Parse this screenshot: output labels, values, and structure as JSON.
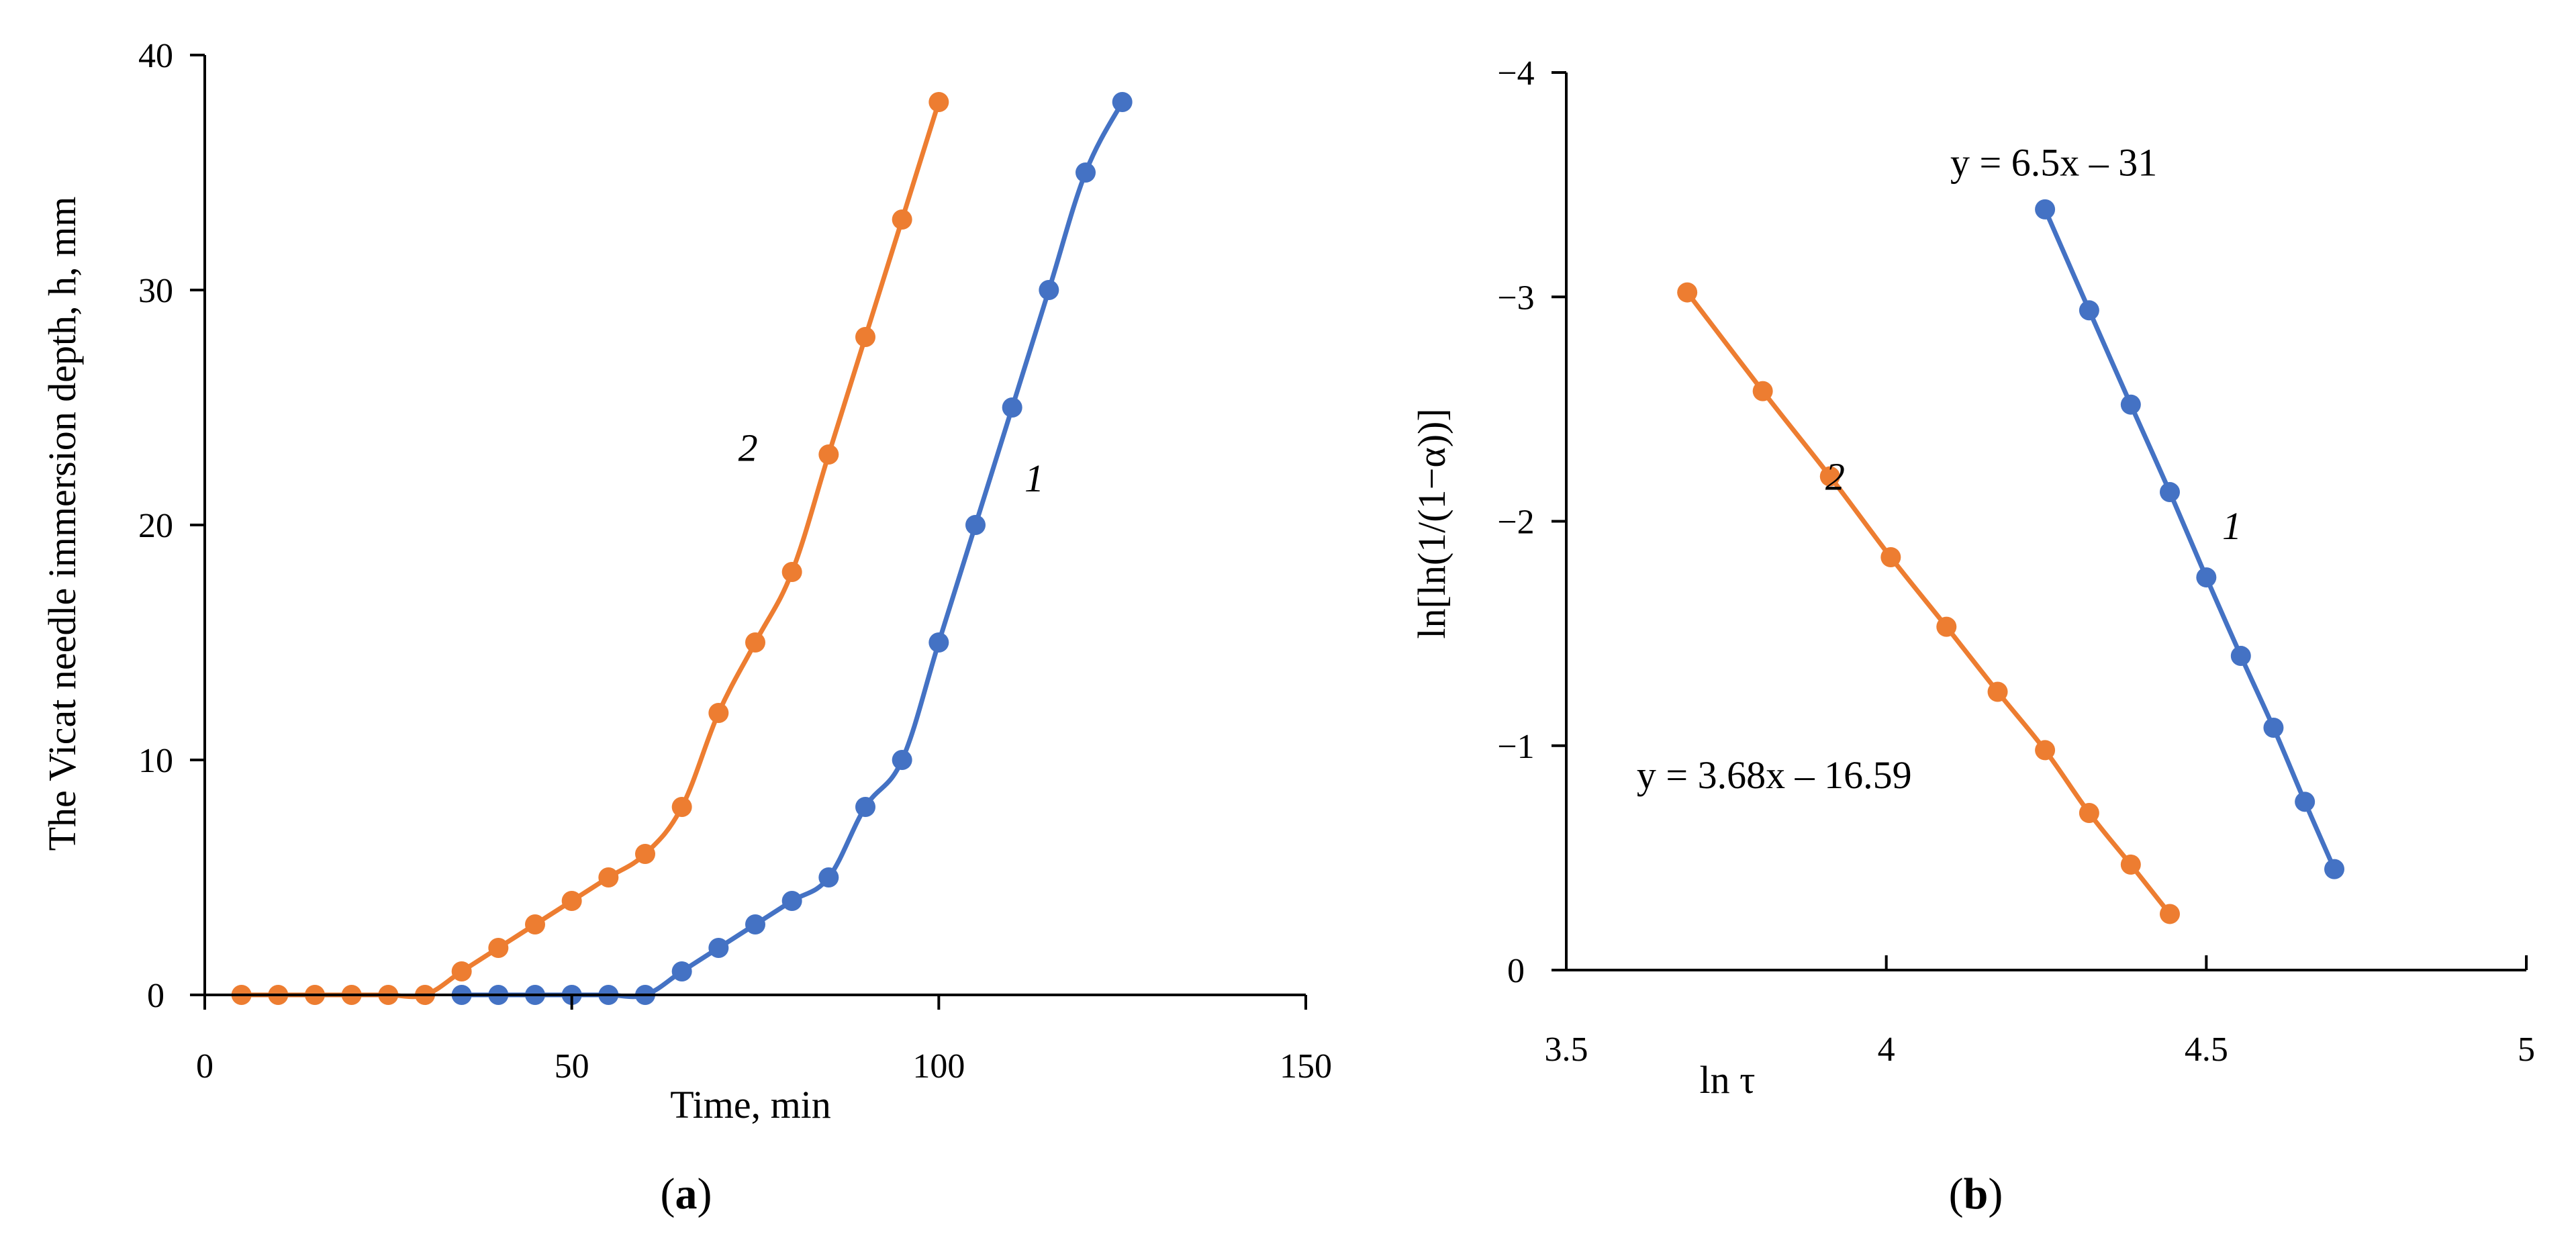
{
  "chart_data": [
    {
      "id": "a",
      "type": "line",
      "panel_label": "(a)",
      "panel_letter": "a",
      "xlabel": "Time, min",
      "ylabel": "The Vicat needle immersion depth, h, mm",
      "xlim": [
        0,
        150
      ],
      "ylim": [
        0,
        40
      ],
      "xticks": [
        0,
        50,
        100,
        150
      ],
      "yticks": [
        0,
        10,
        20,
        30,
        40
      ],
      "grid": false,
      "legend": "none",
      "series": [
        {
          "name": "1",
          "color": "#4472C4",
          "label_at": [
            113,
            22
          ],
          "x": [
            35,
            40,
            45,
            50,
            55,
            60,
            65,
            70,
            75,
            80,
            85,
            90,
            95,
            100,
            105,
            110,
            115,
            120,
            125
          ],
          "y": [
            0,
            0,
            0,
            0,
            0,
            0,
            1,
            2,
            3,
            4,
            5,
            8,
            10,
            15,
            20,
            25,
            30,
            35,
            38
          ]
        },
        {
          "name": "2",
          "color": "#ED7D31",
          "label_at": [
            74,
            23.3
          ],
          "x": [
            5,
            10,
            15,
            20,
            25,
            30,
            35,
            40,
            45,
            50,
            55,
            60,
            65,
            70,
            75,
            80,
            85,
            90,
            95,
            100
          ],
          "y": [
            0,
            0,
            0,
            0,
            0,
            0,
            1,
            2,
            3,
            4,
            5,
            6,
            8,
            12,
            15,
            18,
            23,
            28,
            33,
            38
          ]
        }
      ]
    },
    {
      "id": "b",
      "type": "line",
      "panel_label": "(b)",
      "panel_letter": "b",
      "xlabel": "ln τ",
      "ylabel": "ln[ln(1/(1−α))]",
      "xlim": [
        3.5,
        5
      ],
      "ylim": [
        0,
        -4
      ],
      "y_inverted": true,
      "xticks": [
        3.5,
        4,
        4.5,
        5
      ],
      "yticks": [
        0,
        -1,
        -2,
        -3,
        -4
      ],
      "ytick_labels": [
        "0",
        "−1",
        "−2",
        "−3",
        "−4"
      ],
      "grid": false,
      "legend": "none",
      "series": [
        {
          "name": "1",
          "color": "#4472C4",
          "label_at": [
            4.54,
            -1.98
          ],
          "equation": "y = 6.5x – 31",
          "equation_at": [
            4.1,
            -3.6
          ],
          "x": [
            4.248,
            4.317,
            4.382,
            4.443,
            4.5,
            4.554,
            4.605,
            4.654,
            4.7
          ],
          "y": [
            -3.39,
            -2.94,
            -2.52,
            -2.13,
            -1.75,
            -1.4,
            -1.08,
            -0.75,
            -0.45
          ]
        },
        {
          "name": "2",
          "color": "#ED7D31",
          "label_at": [
            3.92,
            -2.2
          ],
          "equation": "y = 3.68x – 16.59",
          "equation_at": [
            3.61,
            -0.87
          ],
          "x": [
            3.689,
            3.807,
            3.912,
            4.007,
            4.094,
            4.174,
            4.248,
            4.317,
            4.382,
            4.443
          ],
          "y": [
            -3.02,
            -2.58,
            -2.2,
            -1.84,
            -1.53,
            -1.24,
            -0.98,
            -0.7,
            -0.47,
            -0.25
          ]
        }
      ]
    }
  ]
}
